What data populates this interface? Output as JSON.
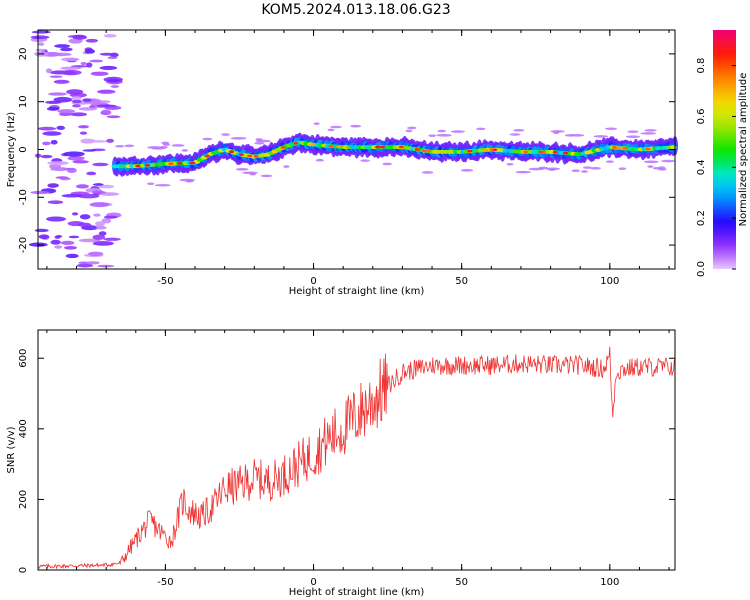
{
  "title": "KOM5.2024.013.18.06.G23",
  "chart_data": [
    {
      "type": "heatmap",
      "xlabel": "Height of straight line (km)",
      "ylabel": "Frequency (Hz)",
      "xlim": [
        -93,
        122
      ],
      "ylim": [
        -25,
        25
      ],
      "xticks": [
        -50,
        0,
        50,
        100
      ],
      "yticks": [
        -20,
        -10,
        0,
        10,
        20
      ],
      "colorbar": {
        "label": "Normalized spectral amplitude",
        "range": [
          0,
          0.94
        ],
        "ticks": [
          "0.0",
          "0.2",
          "0.4",
          "0.6",
          "0.8"
        ],
        "colormap": "rainbow"
      },
      "ridge": {
        "x": [
          -67,
          -60,
          -50,
          -40,
          -35,
          -30,
          -25,
          -20,
          -15,
          -10,
          -5,
          0,
          10,
          20,
          30,
          40,
          50,
          60,
          70,
          80,
          90,
          100,
          110,
          122
        ],
        "y": [
          -3.5,
          -3.5,
          -3,
          -2.8,
          -1,
          0,
          -1,
          -1.5,
          -1,
          0.5,
          1.5,
          1,
          0.5,
          0.5,
          0.5,
          -0.5,
          -0.5,
          0,
          -0.5,
          -0.5,
          -1,
          0.5,
          0,
          0.5
        ]
      },
      "noise_region_x": [
        -93,
        -67
      ]
    },
    {
      "type": "line",
      "xlabel": "Height of straight line (km)",
      "ylabel": "SNR (v/v)",
      "xlim": [
        -93,
        122
      ],
      "ylim": [
        0,
        680
      ],
      "xticks": [
        -50,
        0,
        50,
        100
      ],
      "yticks": [
        0,
        200,
        400,
        600
      ],
      "color": "#ee3333",
      "series": [
        {
          "x": [
            -93,
            -80,
            -70,
            -65,
            -62,
            -58,
            -55,
            -52,
            -48,
            -46,
            -44,
            -42,
            -38,
            -34,
            -30,
            -25,
            -20,
            -15,
            -10,
            -5,
            0,
            5,
            10,
            15,
            20,
            25,
            30,
            40,
            50,
            60,
            70,
            80,
            90,
            98,
            100,
            101,
            102,
            105,
            110,
            122
          ],
          "y": [
            10,
            12,
            14,
            20,
            60,
            110,
            140,
            110,
            80,
            140,
            200,
            170,
            150,
            180,
            230,
            240,
            260,
            250,
            270,
            300,
            330,
            370,
            400,
            440,
            480,
            520,
            560,
            580,
            580,
            580,
            585,
            580,
            580,
            570,
            610,
            430,
            560,
            570,
            575,
            575
          ]
        }
      ]
    }
  ]
}
